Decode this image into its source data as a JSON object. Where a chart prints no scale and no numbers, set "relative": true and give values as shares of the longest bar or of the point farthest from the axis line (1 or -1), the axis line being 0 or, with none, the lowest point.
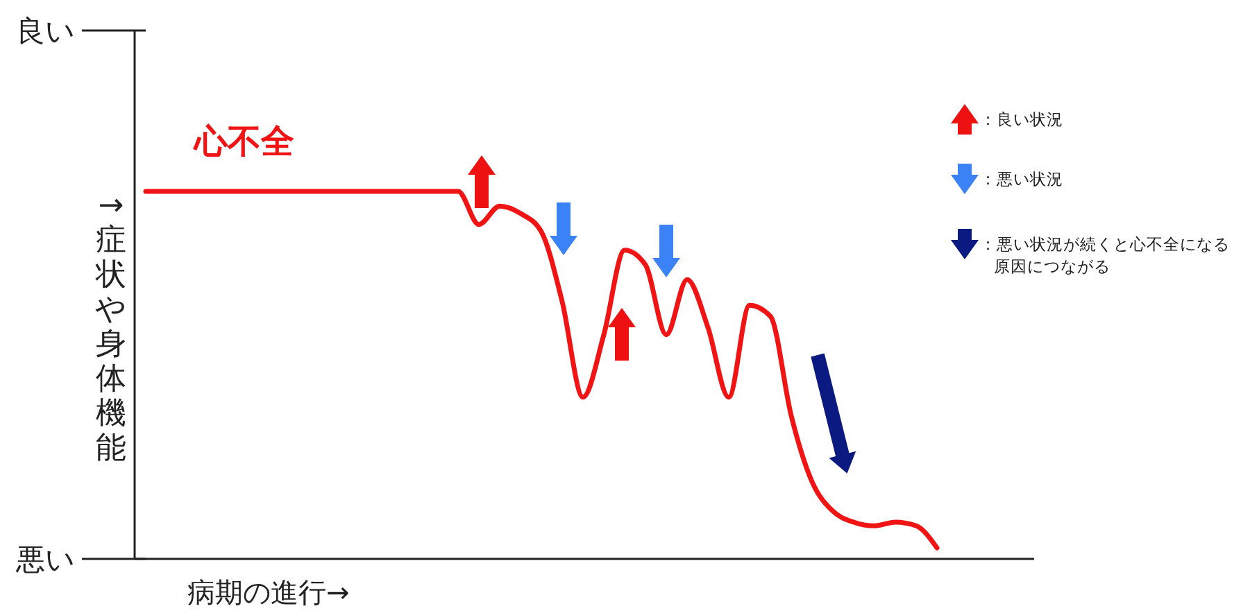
{
  "chart_data": {
    "type": "line",
    "xlabel": "病期の進行→",
    "ylabel": "→症状や身体機能",
    "categories": [
      null,
      null,
      null,
      null,
      null,
      null,
      null,
      null,
      null,
      null,
      null,
      null,
      null,
      null,
      null,
      null,
      null,
      null,
      null,
      null,
      null,
      null,
      null,
      null,
      null,
      null,
      null,
      null,
      null,
      null,
      null,
      null,
      null,
      null,
      null,
      null,
      null,
      null,
      null
    ],
    "relative": true,
    "series": [
      {
        "name": "心不全",
        "color": "#f01414",
        "values": [
          1,
          1,
          1,
          1,
          1,
          1,
          1,
          1,
          1,
          1,
          1,
          1,
          1,
          1,
          1,
          1,
          0.91,
          0.96,
          0.94,
          0.89,
          0.7,
          0.44,
          0.61,
          0.84,
          0.8,
          0.61,
          0.76,
          0.63,
          0.44,
          0.69,
          0.66,
          0.39,
          0.21,
          0.13,
          0.1,
          0.09,
          0.1,
          0.09,
          0.03
        ]
      }
    ],
    "annotations": [
      "良い",
      "悪い",
      "：良い状況",
      "：悪い状況",
      "：悪い状況が続くと心不全になる原因につながる"
    ],
    "marker": "none",
    "line_style": "solid"
  }
}
